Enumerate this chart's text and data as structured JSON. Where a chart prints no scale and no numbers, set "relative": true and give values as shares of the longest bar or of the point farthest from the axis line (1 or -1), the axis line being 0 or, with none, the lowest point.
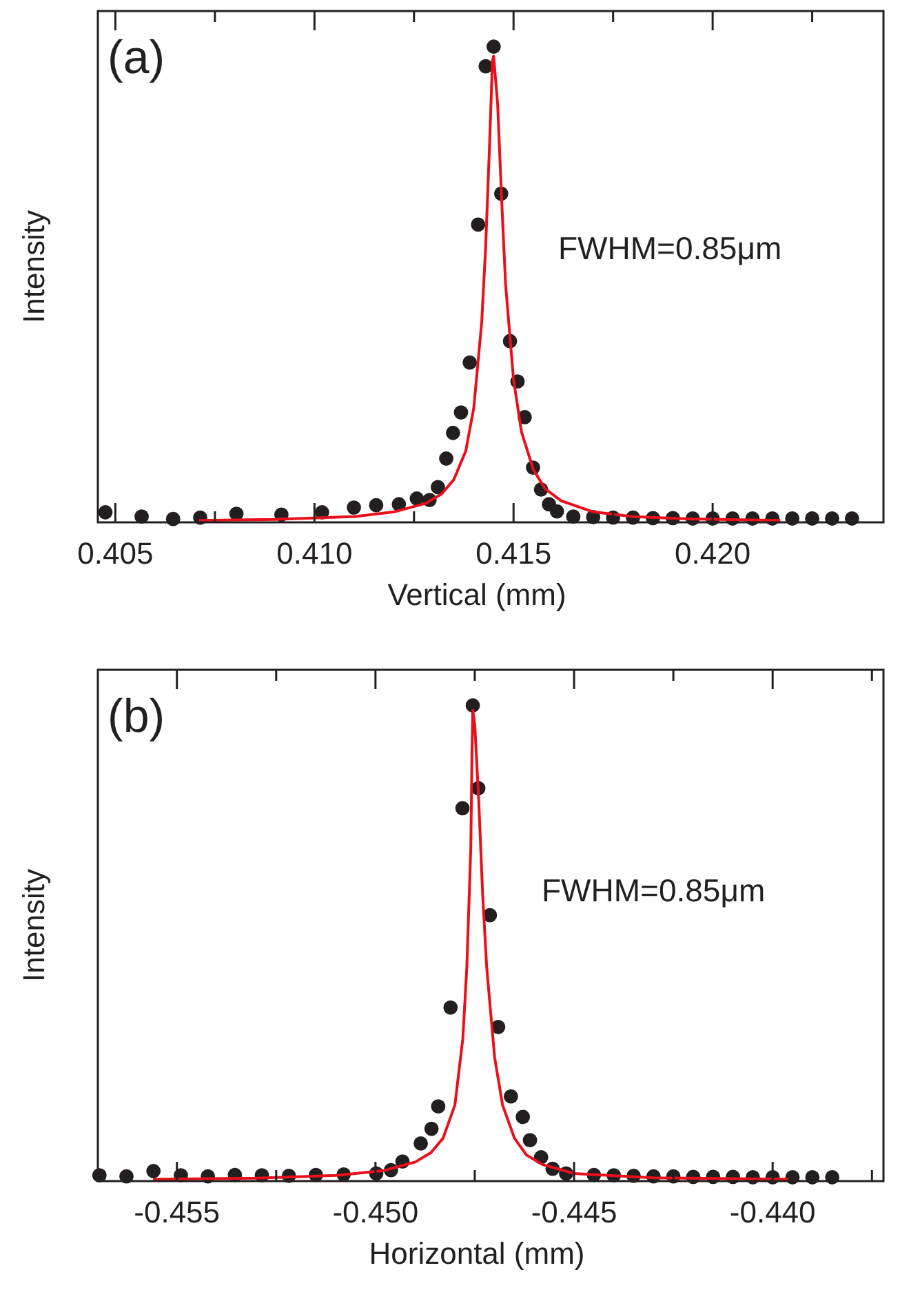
{
  "chart_data": [
    {
      "type": "scatter",
      "relative": true,
      "xlabel": "Vertical (mm)",
      "ylabel": "Intensity",
      "annotations": [
        "(a)",
        "FWHM=0.85μm"
      ],
      "xlim": [
        0.40456,
        0.42429
      ],
      "xticks": [
        0.405,
        {
          "value": 0.4075,
          "label": null
        },
        {
          "value": 0.41,
          "label": "0.410"
        },
        {
          "value": 0.4125,
          "label": null
        },
        0.415,
        {
          "value": 0.4175,
          "label": null
        },
        {
          "value": 0.42,
          "label": "0.420"
        },
        {
          "value": 0.4225,
          "label": null
        }
      ],
      "series": [
        {
          "marker": "circle",
          "color": "#231f20",
          "x": [
            0.40475,
            0.40566,
            0.40645,
            0.40713,
            0.40804,
            0.40917,
            0.41019,
            0.41099,
            0.41155,
            0.41212,
            0.41257,
            0.41289,
            0.4131,
            0.41331,
            0.41348,
            0.41368,
            0.4139,
            0.41411,
            0.4143,
            0.4145,
            0.41469,
            0.41491,
            0.4151,
            0.41528,
            0.41549,
            0.41569,
            0.41589,
            0.41609,
            0.4165,
            0.417,
            0.4175,
            0.418,
            0.4185,
            0.419,
            0.4195,
            0.42,
            0.4205,
            0.421,
            0.4215,
            0.422,
            0.4225,
            0.423,
            0.4235
          ],
          "values": [
            0.021,
            0.012,
            0.007,
            0.01,
            0.018,
            0.016,
            0.021,
            0.031,
            0.036,
            0.038,
            0.05,
            0.047,
            0.074,
            0.134,
            0.188,
            0.231,
            0.336,
            0.626,
            0.959,
            1,
            0.691,
            0.381,
            0.296,
            0.221,
            0.115,
            0.069,
            0.038,
            0.023,
            0.012,
            0.011,
            0.01,
            0.01,
            0.009,
            0.009,
            0.008,
            0.008,
            0.008,
            0.008,
            0.008,
            0.008,
            0.008,
            0.008,
            0.008
          ]
        },
        {
          "type": "line",
          "color": "#e8101a",
          "x": [
            0.4071,
            0.409,
            0.411,
            0.412,
            0.4128,
            0.4132,
            0.4135,
            0.4138,
            0.414,
            0.4142,
            0.4143,
            0.4144,
            0.41447,
            0.4145,
            0.4146,
            0.4147,
            0.4148,
            0.415,
            0.4152,
            0.4155,
            0.4158,
            0.4162,
            0.417,
            0.418,
            0.4195,
            0.4217
          ],
          "values": [
            0.004,
            0.006,
            0.012,
            0.022,
            0.04,
            0.06,
            0.09,
            0.15,
            0.24,
            0.42,
            0.58,
            0.8,
            0.97,
            0.98,
            0.88,
            0.68,
            0.5,
            0.3,
            0.19,
            0.11,
            0.07,
            0.045,
            0.022,
            0.012,
            0.007,
            0.004
          ]
        }
      ]
    },
    {
      "type": "scatter",
      "relative": true,
      "xlabel": "Horizontal (mm)",
      "ylabel": "Intensity",
      "annotations": [
        "(b)",
        "FWHM=0.85μm"
      ],
      "xlim": [
        -0.45699,
        -0.43721
      ],
      "xticks": [
        -0.455,
        {
          "value": -0.4525,
          "label": null
        },
        {
          "value": -0.45,
          "label": "-0.450"
        },
        {
          "value": -0.4475,
          "label": null
        },
        -0.445,
        {
          "value": -0.4425,
          "label": null
        },
        {
          "value": -0.44,
          "label": "-0.440"
        },
        {
          "value": -0.4375,
          "label": null
        }
      ],
      "series": [
        {
          "marker": "circle",
          "color": "#231f20",
          "x": [
            -0.45695,
            -0.45627,
            -0.45559,
            -0.4549,
            -0.45422,
            -0.45354,
            -0.45286,
            -0.45218,
            -0.4515,
            -0.4508,
            -0.44998,
            -0.44961,
            -0.44932,
            -0.44886,
            -0.44859,
            -0.44842,
            -0.44811,
            -0.44781,
            -0.44755,
            -0.44741,
            -0.44712,
            -0.44691,
            -0.44659,
            -0.44629,
            -0.44611,
            -0.44583,
            -0.44554,
            -0.4452,
            -0.4445,
            -0.444,
            -0.4435,
            -0.443,
            -0.4425,
            -0.442,
            -0.4415,
            -0.441,
            -0.4405,
            -0.44,
            -0.4395,
            -0.439,
            -0.4385
          ],
          "values": [
            0.012,
            0.01,
            0.021,
            0.012,
            0.01,
            0.013,
            0.012,
            0.011,
            0.013,
            0.014,
            0.016,
            0.023,
            0.041,
            0.079,
            0.11,
            0.157,
            0.365,
            0.784,
            1,
            0.826,
            0.559,
            0.324,
            0.178,
            0.135,
            0.086,
            0.05,
            0.026,
            0.016,
            0.013,
            0.012,
            0.011,
            0.01,
            0.01,
            0.009,
            0.009,
            0.009,
            0.008,
            0.008,
            0.008,
            0.008,
            0.008
          ]
        },
        {
          "type": "line",
          "color": "#e8101a",
          "x": [
            -0.4556,
            -0.453,
            -0.451,
            -0.4498,
            -0.449,
            -0.4486,
            -0.4483,
            -0.448,
            -0.4478,
            -0.4477,
            -0.4476,
            -0.44757,
            -0.44755,
            -0.4475,
            -0.4474,
            -0.4473,
            -0.4472,
            -0.447,
            -0.4468,
            -0.4465,
            -0.4462,
            -0.4458,
            -0.445,
            -0.443,
            -0.4396
          ],
          "values": [
            0.004,
            0.006,
            0.012,
            0.022,
            0.04,
            0.06,
            0.09,
            0.16,
            0.3,
            0.45,
            0.7,
            0.9,
            0.99,
            0.96,
            0.8,
            0.6,
            0.45,
            0.26,
            0.16,
            0.09,
            0.055,
            0.035,
            0.016,
            0.007,
            0.004
          ]
        }
      ]
    }
  ]
}
